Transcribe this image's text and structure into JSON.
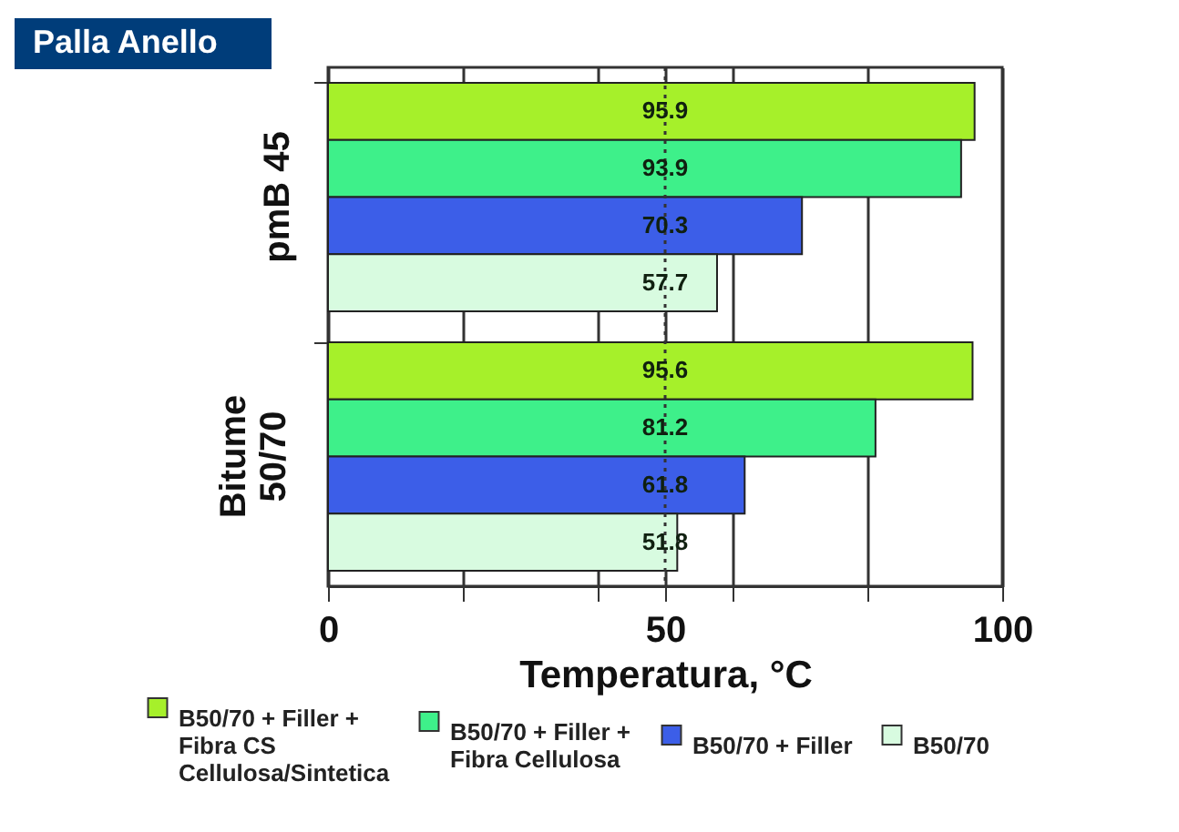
{
  "chart_data": {
    "type": "bar",
    "orientation": "horizontal",
    "title": "Palla Anello",
    "xlabel": "Temperatura, °C",
    "categories": [
      "pmB 45",
      "Bitume\n50/70"
    ],
    "series": [
      {
        "name": "B50/70 + Filler +\nFibra CS\nCellulosa/Sintetica",
        "color": "#a6f02a",
        "values": [
          95.9,
          95.6
        ]
      },
      {
        "name": "B50/70 + Filler +\nFibra Cellulosa",
        "color": "#3ef08a",
        "values": [
          93.9,
          81.2
        ]
      },
      {
        "name": "B50/70 + Filler",
        "color": "#3c5ee8",
        "values": [
          70.3,
          61.8
        ]
      },
      {
        "name": "B50/70",
        "color": "#d8fbe0",
        "values": [
          57.7,
          51.8
        ]
      }
    ],
    "xlim": [
      0,
      100
    ],
    "xticks": [
      0,
      {
        "value": 20,
        "label": null
      },
      {
        "value": 40,
        "label": null
      },
      50,
      {
        "value": 60,
        "label": null
      },
      {
        "value": 80,
        "label": null
      },
      100
    ],
    "ref_lines": [
      {
        "axis": "x",
        "value": 50,
        "line_style": "dotted"
      }
    ],
    "data_labels": true,
    "grid": "x",
    "legend": "bottom"
  }
}
